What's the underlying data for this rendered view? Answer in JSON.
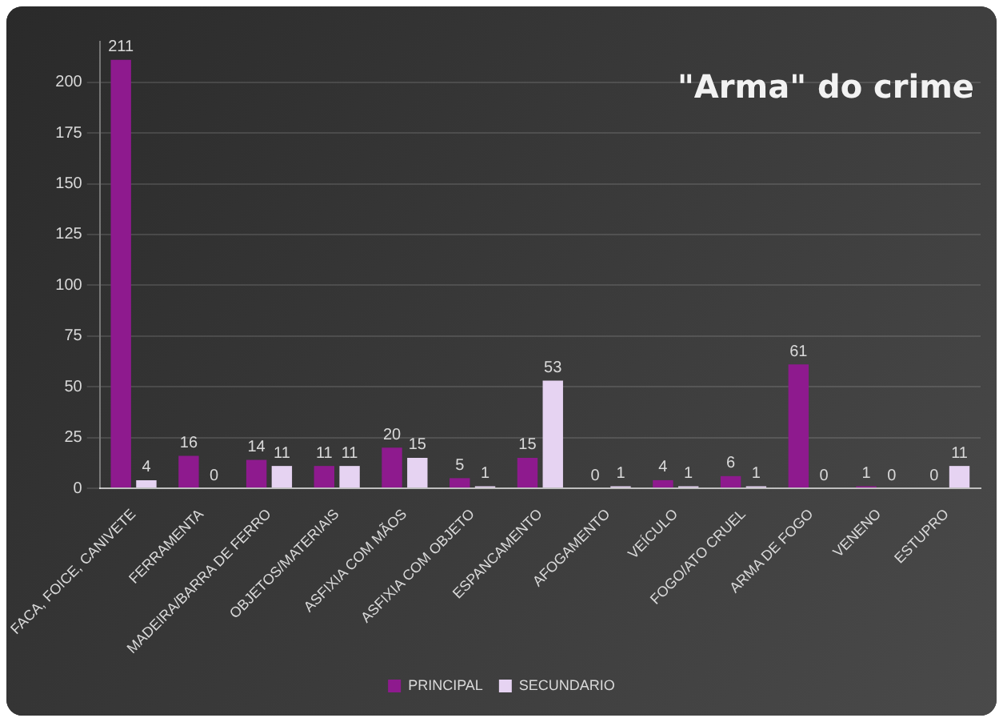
{
  "chart_data": {
    "type": "bar",
    "title": "\"Arma\" do crime",
    "categories": [
      "FACA, FOICE, CANIVETE",
      "FERRAMENTA",
      "MADEIRA/BARRA DE FERRO",
      "OBJETOS/MATERIAIS",
      "ASFIXIA COM MÃOS",
      "ASFIXIA COM OBJETO",
      "ESPANCAMENTO",
      "AFOGAMENTO",
      "VEÍCULO",
      "FOGO/ATO CRUEL",
      "ARMA DE FOGO",
      "VENENO",
      "ESTUPRO"
    ],
    "series": [
      {
        "name": "PRINCIPAL",
        "color": "#8e1a8e",
        "values": [
          211,
          16,
          14,
          11,
          20,
          5,
          15,
          0,
          4,
          6,
          61,
          1,
          0
        ]
      },
      {
        "name": "SECUNDARIO",
        "color": "#e6d3f2",
        "values": [
          4,
          0,
          11,
          11,
          15,
          1,
          53,
          1,
          1,
          1,
          0,
          0,
          11
        ]
      }
    ],
    "ylim": [
      0,
      220
    ],
    "yticks": [
      0,
      25,
      50,
      75,
      100,
      125,
      150,
      175,
      200
    ],
    "grid": "y",
    "legend": "bottom",
    "data_labels": true
  }
}
